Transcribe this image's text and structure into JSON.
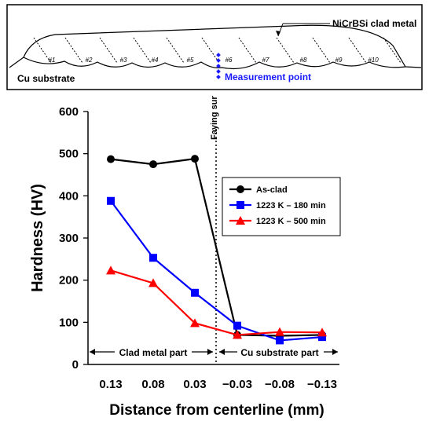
{
  "schematic": {
    "clad_label": "NiCrBSi clad metal",
    "substrate_label": "Cu substrate",
    "measurement_label": "Measurement point",
    "bead_labels": [
      "#1",
      "#2",
      "#3",
      "#4",
      "#5",
      "#6",
      "#7",
      "#8",
      "#9",
      "#10"
    ],
    "measurement_color": "#1a1aff"
  },
  "chart_data": {
    "type": "line",
    "ylabel": "Hardness (HV)",
    "xlabel": "Distance from centerline (mm)",
    "ylim": [
      0,
      600
    ],
    "yticks": [
      0,
      100,
      200,
      300,
      400,
      500,
      600
    ],
    "categories": [
      "0.13",
      "0.08",
      "0.03",
      "−0.03",
      "−0.08",
      "−0.13"
    ],
    "divider_label": "Faying surface",
    "region_labels": {
      "left": "Clad metal part",
      "right": "Cu substrate part"
    },
    "legend_position": "right",
    "series": [
      {
        "name": "As-clad",
        "color": "#000000",
        "marker": "circle",
        "values": [
          487,
          475,
          488,
          70,
          68,
          70
        ]
      },
      {
        "name": "1223 K – 180 min",
        "color": "#0000ff",
        "marker": "square",
        "values": [
          388,
          253,
          170,
          92,
          57,
          65
        ]
      },
      {
        "name": "1223 K – 500 min",
        "color": "#ff0000",
        "marker": "triangle",
        "values": [
          223,
          193,
          98,
          70,
          77,
          76
        ]
      }
    ]
  }
}
